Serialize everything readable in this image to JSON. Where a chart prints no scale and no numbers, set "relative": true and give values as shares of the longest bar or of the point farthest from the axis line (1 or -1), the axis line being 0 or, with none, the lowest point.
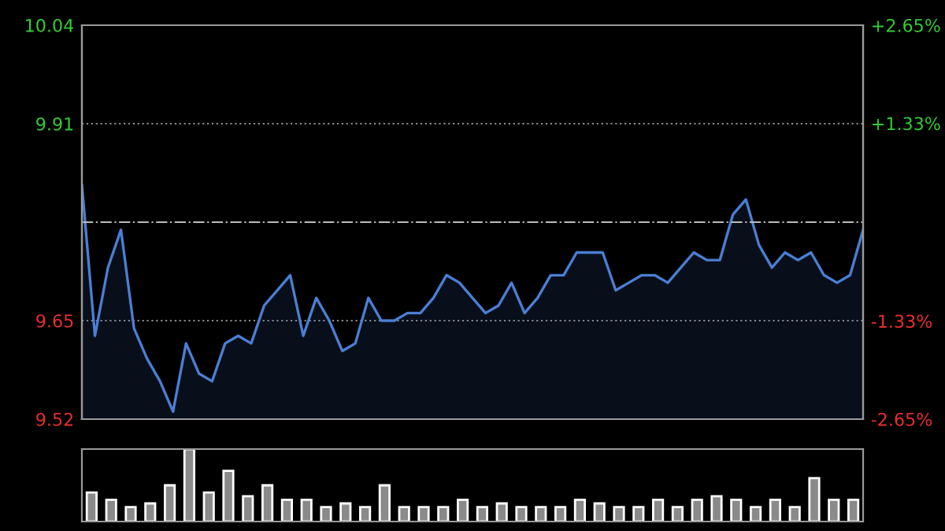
{
  "chart_data": [
    {
      "type": "area",
      "color": "#4a7fd4",
      "categories": [
        null,
        null,
        null,
        null,
        null,
        null,
        null,
        null,
        null,
        null,
        null,
        null,
        null,
        null,
        null,
        null,
        null,
        null,
        null,
        null,
        null,
        null,
        null,
        null,
        null,
        null,
        null,
        null,
        null,
        null,
        null,
        null,
        null,
        null,
        null,
        null,
        null,
        null,
        null,
        null,
        null,
        null,
        null,
        null,
        null,
        null,
        null,
        null,
        null,
        null,
        null,
        null,
        null,
        null,
        null,
        null,
        null,
        null,
        null,
        null,
        null
      ],
      "ylim": [
        9.52,
        10.04
      ],
      "yticks": [
        9.52,
        9.65,
        9.91,
        10.04
      ],
      "y2lim": [
        -2.65,
        2.65
      ],
      "y2ticks": [
        {
          "value": 2.65,
          "label": "+2.65%"
        },
        {
          "value": 1.33,
          "label": "+1.33%"
        },
        {
          "value": -1.33,
          "label": "-1.33%"
        },
        {
          "value": -2.65,
          "label": "-2.65%"
        }
      ],
      "grid": "y",
      "ref_lines": [
        {
          "axis": "y",
          "value": 9.78,
          "label": null,
          "line_style": "dashdot"
        }
      ],
      "values": [
        9.83,
        9.63,
        9.72,
        9.77,
        9.64,
        9.6,
        9.57,
        9.53,
        9.62,
        9.58,
        9.57,
        9.62,
        9.63,
        9.62,
        9.67,
        9.69,
        9.71,
        9.63,
        9.68,
        9.65,
        9.61,
        9.62,
        9.68,
        9.65,
        9.65,
        9.66,
        9.66,
        9.68,
        9.71,
        9.7,
        9.68,
        9.66,
        9.67,
        9.7,
        9.66,
        9.68,
        9.71,
        9.71,
        9.74,
        9.74,
        9.74,
        9.69,
        9.7,
        9.71,
        9.71,
        9.7,
        9.72,
        9.74,
        9.73,
        9.73,
        9.79,
        9.81,
        9.75,
        9.72,
        9.74,
        9.73,
        9.74,
        9.71,
        9.7,
        9.71,
        9.77
      ]
    },
    {
      "type": "bar",
      "relative": true,
      "color": "#8a8a8a",
      "categories": [
        null,
        null,
        null,
        null,
        null,
        null,
        null,
        null,
        null,
        null,
        null,
        null,
        null,
        null,
        null,
        null,
        null,
        null,
        null,
        null,
        null,
        null,
        null,
        null,
        null,
        null,
        null,
        null,
        null,
        null,
        null,
        null,
        null,
        null,
        null,
        null,
        null,
        null,
        null,
        null
      ],
      "values": [
        0.4,
        0.3,
        0.2,
        0.25,
        0.5,
        1.0,
        0.4,
        0.7,
        0.35,
        0.5,
        0.3,
        0.3,
        0.2,
        0.25,
        0.2,
        0.5,
        0.2,
        0.2,
        0.2,
        0.3,
        0.2,
        0.25,
        0.2,
        0.2,
        0.2,
        0.3,
        0.25,
        0.2,
        0.2,
        0.3,
        0.2,
        0.3,
        0.35,
        0.3,
        0.2,
        0.3,
        0.2,
        0.6,
        0.3,
        0.3
      ]
    }
  ]
}
